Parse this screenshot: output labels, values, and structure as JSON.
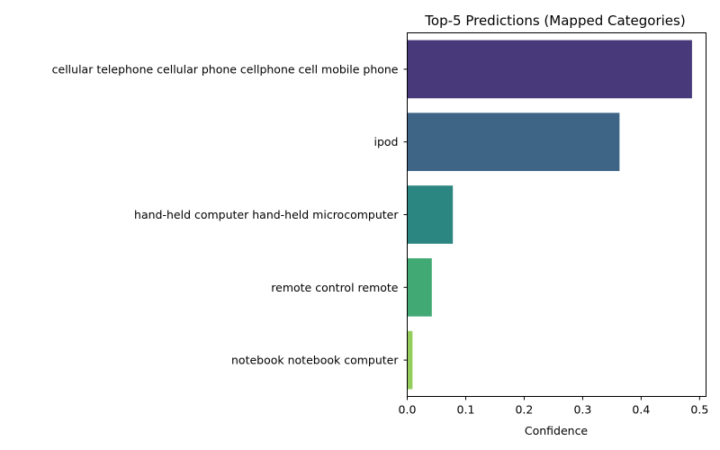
{
  "chart_data": {
    "type": "bar",
    "orientation": "horizontal",
    "title": "Top-5 Predictions (Mapped Categories)",
    "xlabel": "Confidence",
    "ylabel": "",
    "categories": [
      "cellular telephone cellular phone cellphone cell mobile phone",
      "ipod",
      "hand-held computer hand-held microcomputer",
      "remote control remote",
      "notebook notebook computer"
    ],
    "values": [
      0.487,
      0.363,
      0.078,
      0.042,
      0.009
    ],
    "colors": [
      "#48397a",
      "#3e6586",
      "#2b8580",
      "#41a974",
      "#94cd5b"
    ],
    "xlim": [
      0,
      0.511
    ],
    "xticks": [
      0.0,
      0.1,
      0.2,
      0.3,
      0.4,
      0.5
    ],
    "xtick_labels": [
      "0.0",
      "0.1",
      "0.2",
      "0.3",
      "0.4",
      "0.5"
    ],
    "grid": false,
    "legend": "none"
  }
}
